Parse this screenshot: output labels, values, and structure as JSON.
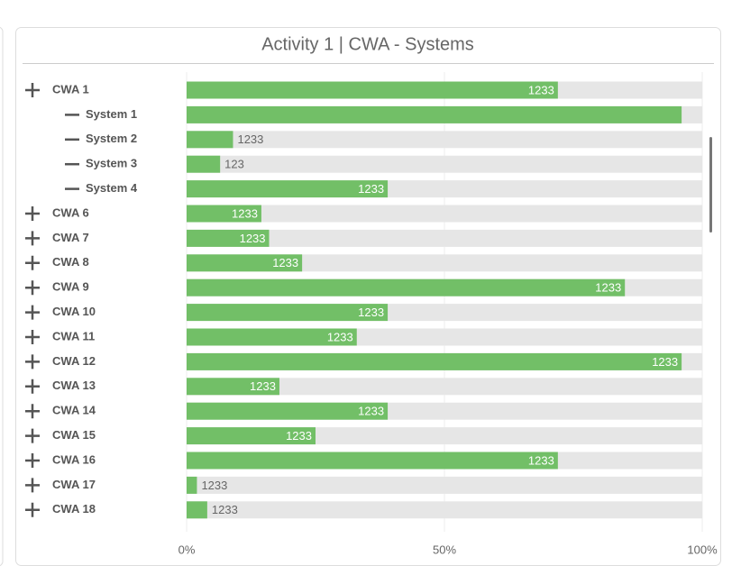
{
  "chart_data": {
    "type": "bar",
    "orientation": "horizontal",
    "title": "Activity 1 | CWA - Systems",
    "categories": [
      "CWA 1",
      "System 1",
      "System 2",
      "System 3",
      "System 4",
      "CWA 6",
      "CWA 7",
      "CWA 8",
      "CWA 9",
      "CWA 10",
      "CWA 11",
      "CWA 12",
      "CWA 13",
      "CWA 14",
      "CWA 15",
      "CWA 16",
      "CWA 17",
      "CWA 18"
    ],
    "values": [
      72,
      96,
      9,
      6.5,
      39,
      14.5,
      16,
      22.4,
      85,
      39,
      33,
      96,
      18,
      39,
      25,
      72,
      2,
      4
    ],
    "value_labels": [
      "1233",
      null,
      "1233",
      "123",
      "1233",
      "1233",
      "1233",
      "1233",
      "1233",
      "1233",
      "1233",
      "1233",
      "1233",
      "1233",
      "1233",
      "1233",
      "1233",
      "1233"
    ],
    "color": "#72bf67",
    "xlim": [
      0,
      100
    ],
    "xticks": [
      {
        "value": 0,
        "label": "0%"
      },
      {
        "value": 50,
        "label": "50%"
      },
      {
        "value": 100,
        "label": "100%"
      }
    ],
    "grid": true
  }
}
